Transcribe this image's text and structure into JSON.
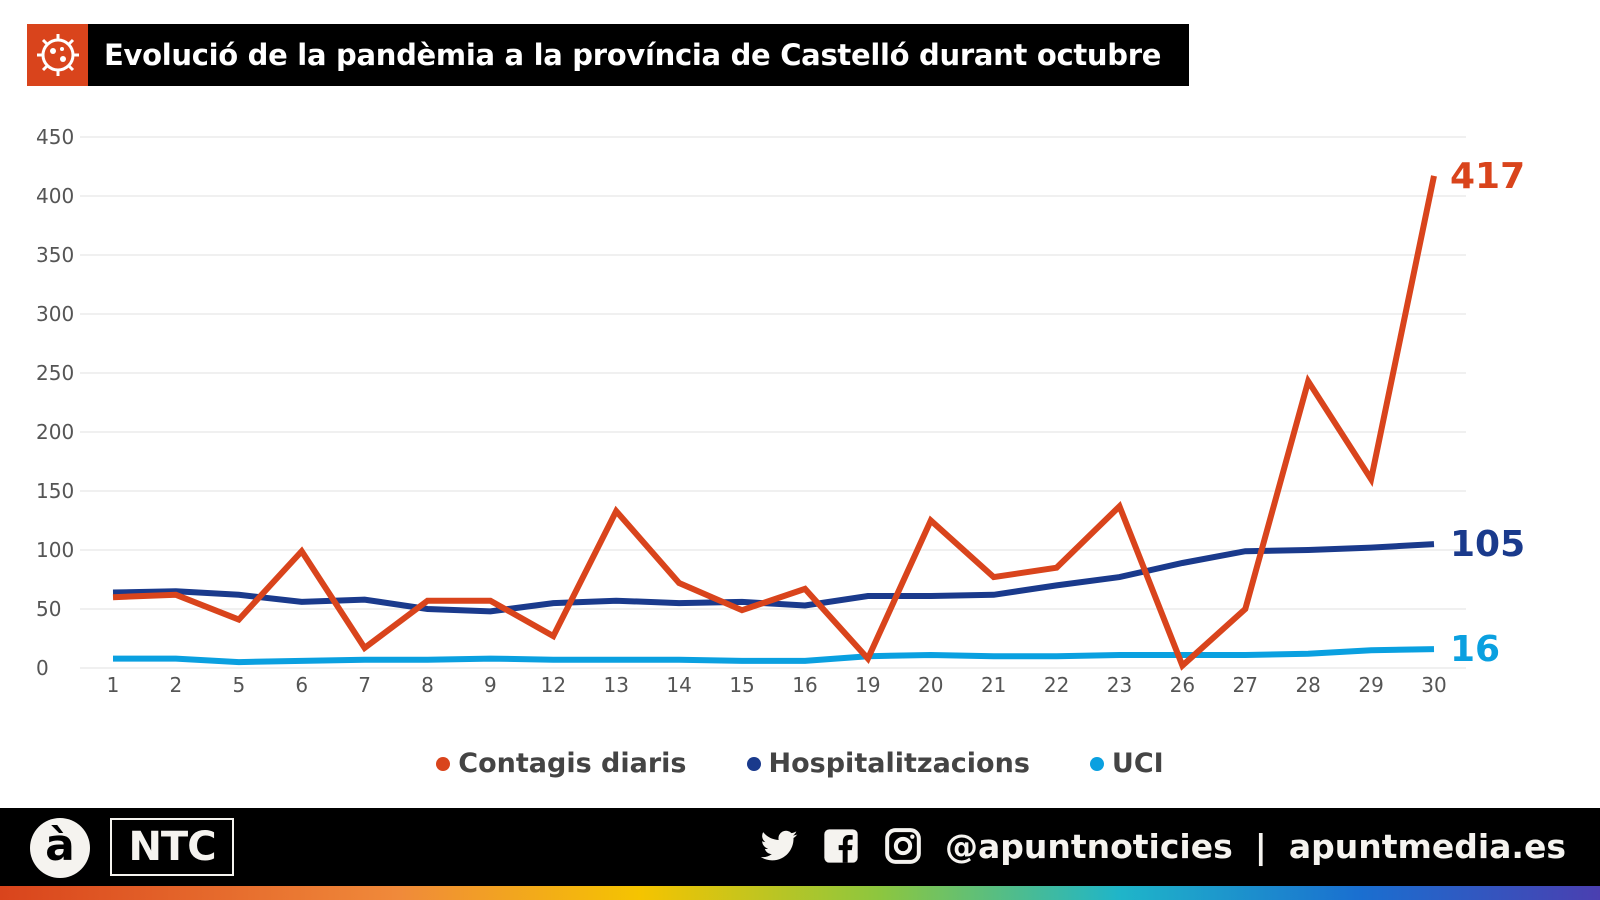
{
  "header": {
    "title": "Evolució de la pandèmia a la província de Castelló durant octubre",
    "icon": "virus-icon",
    "accent": "#d9441c"
  },
  "chart_data": {
    "type": "line",
    "title": "Evolució de la pandèmia a la província de Castelló durant octubre",
    "categories": [
      "1",
      "2",
      "5",
      "6",
      "7",
      "8",
      "9",
      "12",
      "13",
      "14",
      "15",
      "16",
      "19",
      "20",
      "21",
      "22",
      "23",
      "26",
      "27",
      "28",
      "29",
      "30"
    ],
    "ylim": [
      0,
      450
    ],
    "yticks": [
      0,
      50,
      100,
      150,
      200,
      250,
      300,
      350,
      400,
      450
    ],
    "grid": true,
    "legend_placement": "bottom",
    "series": [
      {
        "name": "Contagis diaris",
        "color": "#d9441c",
        "end_label": "417",
        "values": [
          60,
          62,
          41,
          99,
          17,
          57,
          57,
          27,
          133,
          72,
          49,
          67,
          8,
          125,
          77,
          85,
          137,
          2,
          50,
          243,
          160,
          417
        ]
      },
      {
        "name": "Hospitalitzacions",
        "color": "#1a3a8c",
        "end_label": "105",
        "values": [
          64,
          65,
          62,
          56,
          58,
          50,
          48,
          55,
          57,
          55,
          56,
          53,
          61,
          61,
          62,
          70,
          77,
          89,
          99,
          100,
          102,
          105
        ]
      },
      {
        "name": "UCI",
        "color": "#0aa0e0",
        "end_label": "16",
        "values": [
          8,
          8,
          5,
          6,
          7,
          7,
          8,
          7,
          7,
          7,
          6,
          6,
          10,
          11,
          10,
          10,
          11,
          11,
          11,
          12,
          15,
          16
        ]
      }
    ]
  },
  "footer": {
    "logo_a": "à",
    "logo_ntc": "NTC",
    "icons": [
      "twitter-icon",
      "facebook-icon",
      "instagram-icon"
    ],
    "handle": "@apuntnoticies",
    "separator": "|",
    "website": "apuntmedia.es"
  }
}
